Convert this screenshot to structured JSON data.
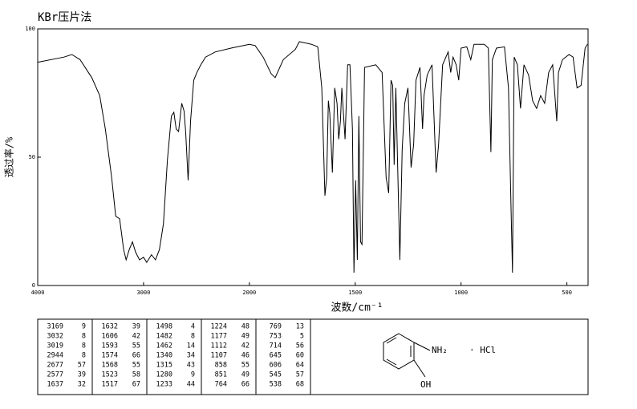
{
  "chart_data": {
    "type": "line",
    "title": "KBr压片法",
    "ylabel": "透过率/%",
    "xlabel": "波数/cm⁻¹",
    "xlim": [
      4000,
      400
    ],
    "x_scale_break": 2000,
    "x_scale_factor": 2,
    "xticks": [
      4000,
      3000,
      2000,
      1500,
      1000,
      500
    ],
    "ylim": [
      0,
      100
    ],
    "yticks": [
      0,
      50,
      100
    ],
    "color": "#000000",
    "x": [
      4000,
      3752,
      3677,
      3600,
      3489,
      3414,
      3361,
      3301,
      3263,
      3226,
      3188,
      3165,
      3135,
      3105,
      3075,
      3038,
      3000,
      2970,
      2925,
      2887,
      2850,
      2812,
      2774,
      2737,
      2714,
      2692,
      2669,
      2639,
      2617,
      2602,
      2579,
      2556,
      2526,
      2496,
      2459,
      2414,
      2323,
      2173,
      2000,
      1973,
      1935,
      1897,
      1878,
      1840,
      1783,
      1764,
      1707,
      1677,
      1658,
      1643,
      1635,
      1627,
      1620,
      1608,
      1597,
      1586,
      1578,
      1570,
      1563,
      1548,
      1536,
      1525,
      1513,
      1506,
      1498,
      1490,
      1483,
      1475,
      1468,
      1456,
      1403,
      1373,
      1354,
      1342,
      1331,
      1323,
      1316,
      1308,
      1289,
      1278,
      1266,
      1251,
      1236,
      1224,
      1213,
      1194,
      1182,
      1175,
      1160,
      1137,
      1118,
      1106,
      1087,
      1061,
      1049,
      1038,
      1023,
      1011,
      1000,
      973,
      954,
      939,
      890,
      871,
      859,
      852,
      833,
      795,
      776,
      764,
      757,
      749,
      734,
      719,
      703,
      681,
      662,
      643,
      624,
      605,
      586,
      567,
      548,
      540,
      521,
      490,
      471,
      452,
      433,
      414,
      403
    ],
    "values": [
      87,
      89,
      90,
      88,
      81,
      74,
      61,
      42,
      27,
      26,
      14,
      10,
      14,
      17,
      13,
      10,
      11,
      9,
      12,
      10,
      14,
      24,
      49,
      66,
      67.5,
      61,
      60,
      71,
      68,
      60,
      41,
      64,
      80,
      83,
      86,
      89,
      91,
      92.5,
      94,
      93.5,
      89,
      82.5,
      81,
      88,
      92,
      95,
      94,
      93,
      77,
      35,
      42,
      72,
      67,
      44,
      77,
      71,
      57,
      64,
      77,
      57,
      86,
      86,
      61,
      5,
      41,
      10,
      66,
      17,
      16,
      85,
      86,
      83,
      42,
      36,
      80,
      78,
      47,
      77,
      10,
      53,
      71,
      77,
      46,
      55,
      80,
      85,
      61,
      74,
      82,
      86,
      44,
      55,
      86,
      91,
      83,
      89,
      86,
      80,
      92.5,
      93,
      88,
      94,
      94,
      92.5,
      52,
      88,
      92.5,
      93,
      77,
      30,
      5,
      89,
      86,
      69,
      86,
      82,
      72,
      69,
      74,
      71,
      83,
      86,
      64,
      83,
      88,
      90,
      89,
      77,
      78,
      92.5,
      94
    ]
  },
  "peak_table": {
    "columns": [
      [
        [
          3169,
          9
        ],
        [
          3032,
          8
        ],
        [
          3019,
          8
        ],
        [
          2944,
          8
        ],
        [
          2677,
          57
        ],
        [
          2577,
          39
        ],
        [
          1637,
          32
        ]
      ],
      [
        [
          1632,
          39
        ],
        [
          1606,
          42
        ],
        [
          1593,
          55
        ],
        [
          1574,
          66
        ],
        [
          1568,
          55
        ],
        [
          1523,
          58
        ],
        [
          1517,
          67
        ]
      ],
      [
        [
          1498,
          4
        ],
        [
          1482,
          8
        ],
        [
          1462,
          14
        ],
        [
          1340,
          34
        ],
        [
          1315,
          43
        ],
        [
          1280,
          9
        ],
        [
          1233,
          44
        ]
      ],
      [
        [
          1224,
          48
        ],
        [
          1177,
          49
        ],
        [
          1112,
          42
        ],
        [
          1107,
          46
        ],
        [
          858,
          55
        ],
        [
          851,
          49
        ],
        [
          764,
          66
        ]
      ],
      [
        [
          769,
          13
        ],
        [
          753,
          5
        ],
        [
          714,
          56
        ],
        [
          645,
          60
        ],
        [
          606,
          64
        ],
        [
          545,
          57
        ],
        [
          538,
          68
        ]
      ]
    ]
  },
  "structure": {
    "amine": "NH₂",
    "salt": "· HCl",
    "hydroxyl": "OH"
  }
}
